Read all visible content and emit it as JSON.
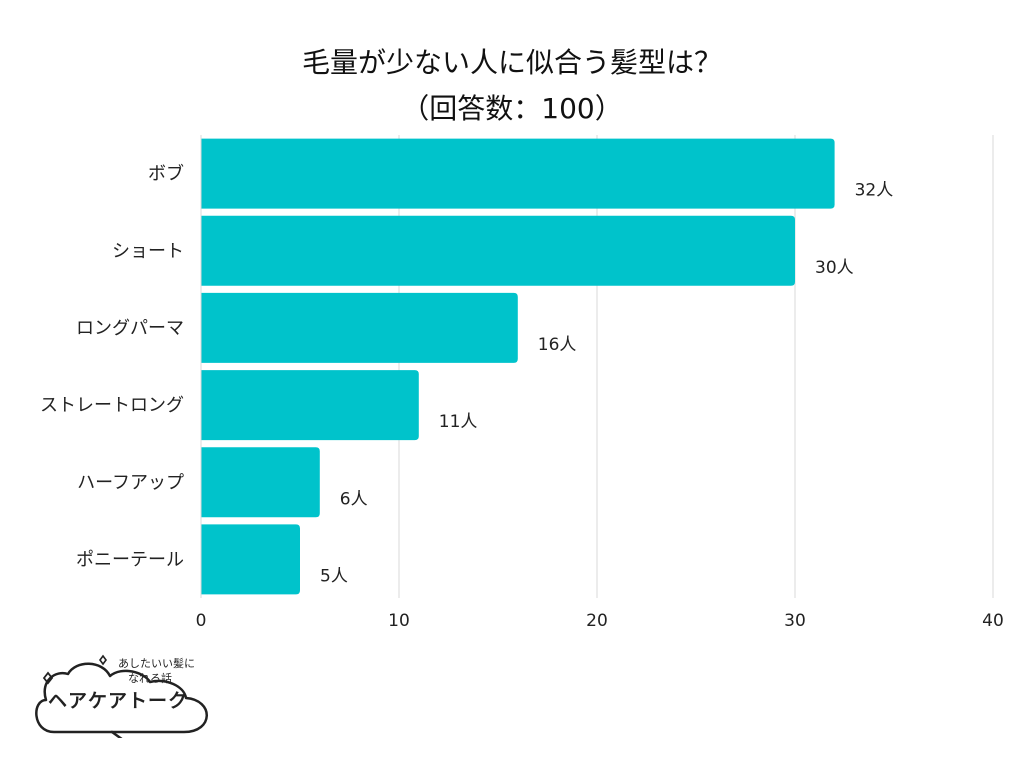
{
  "chart_data": {
    "type": "bar",
    "orientation": "horizontal",
    "title": "毛量が少ない人に似合う髪型は？",
    "subtitle": "（回答数：100）",
    "categories": [
      "ボブ",
      "ショート",
      "ロングパーマ",
      "ストレートロング",
      "ハーフアップ",
      "ポニーテール"
    ],
    "values": [
      32,
      30,
      16,
      11,
      6,
      5
    ],
    "value_labels": [
      "32人",
      "30人",
      "16人",
      "11人",
      "6人",
      "5人"
    ],
    "xlim": [
      0,
      40
    ],
    "xticks": [
      "0",
      "10",
      "20",
      "30",
      "40"
    ],
    "grid": true,
    "bar_color": "#00c3cb"
  },
  "logo": {
    "tagline_line1": "あしたいい髪に",
    "tagline_line2": "なれる話",
    "name": "ヘアケアトーク"
  }
}
